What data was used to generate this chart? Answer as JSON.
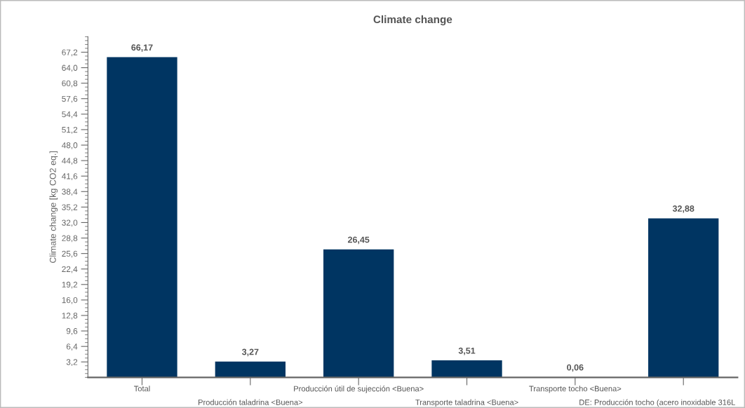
{
  "chart_data": {
    "type": "bar",
    "title": "Climate change",
    "ylabel": "Climate change [kg CO2 eq.]",
    "categories": [
      "Total",
      "Producción taladrina <Buena>",
      "Producción útil de sujección <Buena>",
      "Transporte taladrina <Buena>",
      "Transporte tocho <Buena>",
      "DE: Producción tocho (acero inoxidable 316L"
    ],
    "values": [
      66.17,
      3.27,
      26.45,
      3.51,
      0.06,
      32.88
    ],
    "value_labels": [
      "66,17",
      "3,27",
      "26,45",
      "3,51",
      "0,06",
      "32,88"
    ],
    "color": "#003562",
    "ylim": [
      0,
      70.4
    ],
    "yticks": [
      {
        "value": 3.2,
        "label": "3,2"
      },
      {
        "value": 6.4,
        "label": "6,4"
      },
      {
        "value": 9.6,
        "label": "9,6"
      },
      {
        "value": 12.8,
        "label": "12,8"
      },
      {
        "value": 16.0,
        "label": "16,0"
      },
      {
        "value": 19.2,
        "label": "19,2"
      },
      {
        "value": 22.4,
        "label": "22,4"
      },
      {
        "value": 25.6,
        "label": "25,6"
      },
      {
        "value": 28.8,
        "label": "28,8"
      },
      {
        "value": 32.0,
        "label": "32,0"
      },
      {
        "value": 35.2,
        "label": "35,2"
      },
      {
        "value": 38.4,
        "label": "38,4"
      },
      {
        "value": 41.6,
        "label": "41,6"
      },
      {
        "value": 44.8,
        "label": "44,8"
      },
      {
        "value": 48.0,
        "label": "48,0"
      },
      {
        "value": 51.2,
        "label": "51,2"
      },
      {
        "value": 54.4,
        "label": "54,4"
      },
      {
        "value": 57.6,
        "label": "57,6"
      },
      {
        "value": 60.8,
        "label": "60,8"
      },
      {
        "value": 64.0,
        "label": "64,0"
      },
      {
        "value": 67.2,
        "label": "67,2"
      }
    ],
    "grid": false,
    "legend": false
  }
}
